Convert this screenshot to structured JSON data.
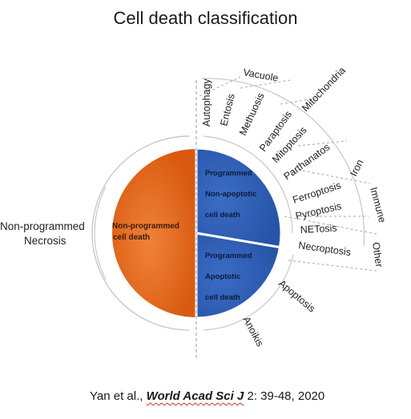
{
  "title": "Cell death classification",
  "left_labels": [
    "Non-programmed",
    "Necrosis"
  ],
  "half_circle": {
    "label_lines": [
      "Non-programmed",
      "cell death"
    ],
    "color": "#e86a1c"
  },
  "non_apoptotic": {
    "label_lines": [
      "Programmed",
      "Non-apoptotic",
      "cell death"
    ],
    "color": "#2f5fb5"
  },
  "apoptotic": {
    "label_lines": [
      "Programmed",
      "Apoptotic",
      "cell death"
    ],
    "color": "#2f5fb5"
  },
  "radial_labels": {
    "autophagy": "Autophagy",
    "entosis": "Entosis",
    "methuosis": "Methuosis",
    "paraptosis": "Paraptosis",
    "mitoptosis": "Mitoptosis",
    "parthanatos": "Parthanatos",
    "ferroptosis": "Ferroptosis",
    "pyroptosis": "Pyroptosis",
    "netosis": "NETosis",
    "necroptosis": "Necroptosis",
    "apoptosis": "Apoptosis",
    "anoikis": "Anoikis"
  },
  "group_labels": {
    "vacuole": "Vacuole",
    "mitochondria": "Mitochondria",
    "iron": "Iron",
    "immune": "Immune",
    "other": "Other"
  },
  "citation": {
    "authors": "Yan et al., ",
    "journal": "World Acad Sci J",
    "details": " 2: 39-48, 2020"
  }
}
